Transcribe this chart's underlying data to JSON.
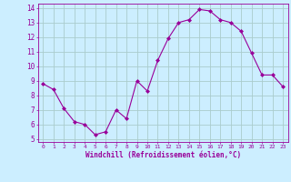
{
  "x": [
    0,
    1,
    2,
    3,
    4,
    5,
    6,
    7,
    8,
    9,
    10,
    11,
    12,
    13,
    14,
    15,
    16,
    17,
    18,
    19,
    20,
    21,
    22,
    23
  ],
  "y": [
    8.8,
    8.4,
    7.1,
    6.2,
    6.0,
    5.3,
    5.5,
    7.0,
    6.4,
    9.0,
    8.3,
    10.4,
    11.9,
    13.0,
    13.2,
    13.9,
    13.8,
    13.2,
    13.0,
    12.4,
    10.9,
    9.4,
    9.4,
    8.6
  ],
  "line_color": "#990099",
  "marker": "D",
  "marker_size": 2.0,
  "background_color": "#cceeff",
  "grid_color": "#aacccc",
  "xlabel": "Windchill (Refroidissement éolien,°C)",
  "xlabel_color": "#990099",
  "tick_color": "#990099",
  "ylim": [
    5,
    14
  ],
  "xlim": [
    -0.5,
    23.5
  ],
  "yticks": [
    5,
    6,
    7,
    8,
    9,
    10,
    11,
    12,
    13,
    14
  ],
  "xticks": [
    0,
    1,
    2,
    3,
    4,
    5,
    6,
    7,
    8,
    9,
    10,
    11,
    12,
    13,
    14,
    15,
    16,
    17,
    18,
    19,
    20,
    21,
    22,
    23
  ]
}
